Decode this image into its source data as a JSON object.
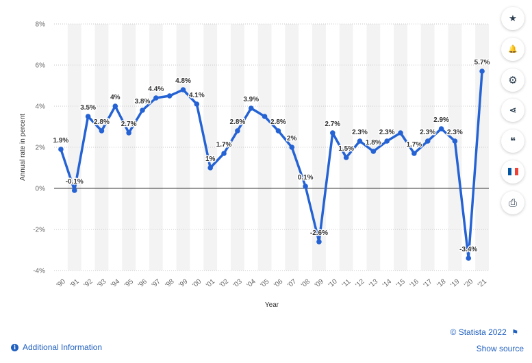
{
  "chart_data": {
    "type": "line",
    "title": "",
    "xlabel": "Year",
    "ylabel": "Annual rate in percent",
    "categories": [
      "'90",
      "'91",
      "'92",
      "'93",
      "'94",
      "'95",
      "'96",
      "'97",
      "'98",
      "'99",
      "'00",
      "'01",
      "'02",
      "'03",
      "'04",
      "'05",
      "'06",
      "'07",
      "'08",
      "'09",
      "'10",
      "'11",
      "'12",
      "'13",
      "'14",
      "'15",
      "'16",
      "'17",
      "'18",
      "'19",
      "'20",
      "'21"
    ],
    "series": [
      {
        "values": [
          1.9,
          -0.1,
          3.5,
          2.8,
          4.0,
          2.7,
          3.8,
          4.4,
          4.5,
          4.8,
          4.1,
          1.0,
          1.7,
          2.8,
          3.9,
          3.5,
          2.8,
          2.0,
          0.1,
          -2.6,
          2.7,
          1.5,
          2.3,
          1.8,
          2.3,
          2.7,
          1.7,
          2.3,
          2.9,
          2.3,
          -3.4,
          5.7
        ],
        "labels": [
          "1.9%",
          "-0.1%",
          "3.5%",
          "2.8%",
          "4%",
          "2.7%",
          "3.8%",
          "4.4%",
          "",
          "4.8%",
          "4.1%",
          "1%",
          "1.7%",
          "2.8%",
          "3.9%",
          "",
          "2.8%",
          "2%",
          "0.1%",
          "-2.6%",
          "2.7%",
          "1.5%",
          "2.3%",
          "1.8%",
          "2.3%",
          "",
          "1.7%",
          "2.3%",
          "2.9%",
          "2.3%",
          "-3.4%",
          "5.7%"
        ]
      }
    ],
    "yticks": [
      8,
      6,
      4,
      2,
      0,
      -2,
      -4
    ],
    "ytick_labels": [
      "8%",
      "6%",
      "4%",
      "2%",
      "0%",
      "-2%",
      "-4%"
    ],
    "ylim": [
      -4,
      8
    ],
    "grid": true,
    "alternating_column_bands": true,
    "line_color": "#2563d4",
    "band_color": "#f3f3f3"
  },
  "toolbar": {
    "icons": [
      "star-icon",
      "bell-icon",
      "gear-icon",
      "share-icon",
      "quote-icon",
      "flag-fr-icon",
      "print-icon"
    ],
    "star": "★",
    "bell": "🔔",
    "gear": "⚙",
    "share": "⋖",
    "quote": "❝",
    "print": "⎙"
  },
  "footer": {
    "credit": "© Statista 2022",
    "credit_flag": "⚑",
    "show_source": "Show source",
    "additional_info": "Additional Information",
    "info_icon": "i"
  },
  "colors": {
    "link": "#1f5fbf",
    "flag_blue": "#0055a4",
    "flag_white": "#ffffff",
    "flag_red": "#ef4135"
  }
}
